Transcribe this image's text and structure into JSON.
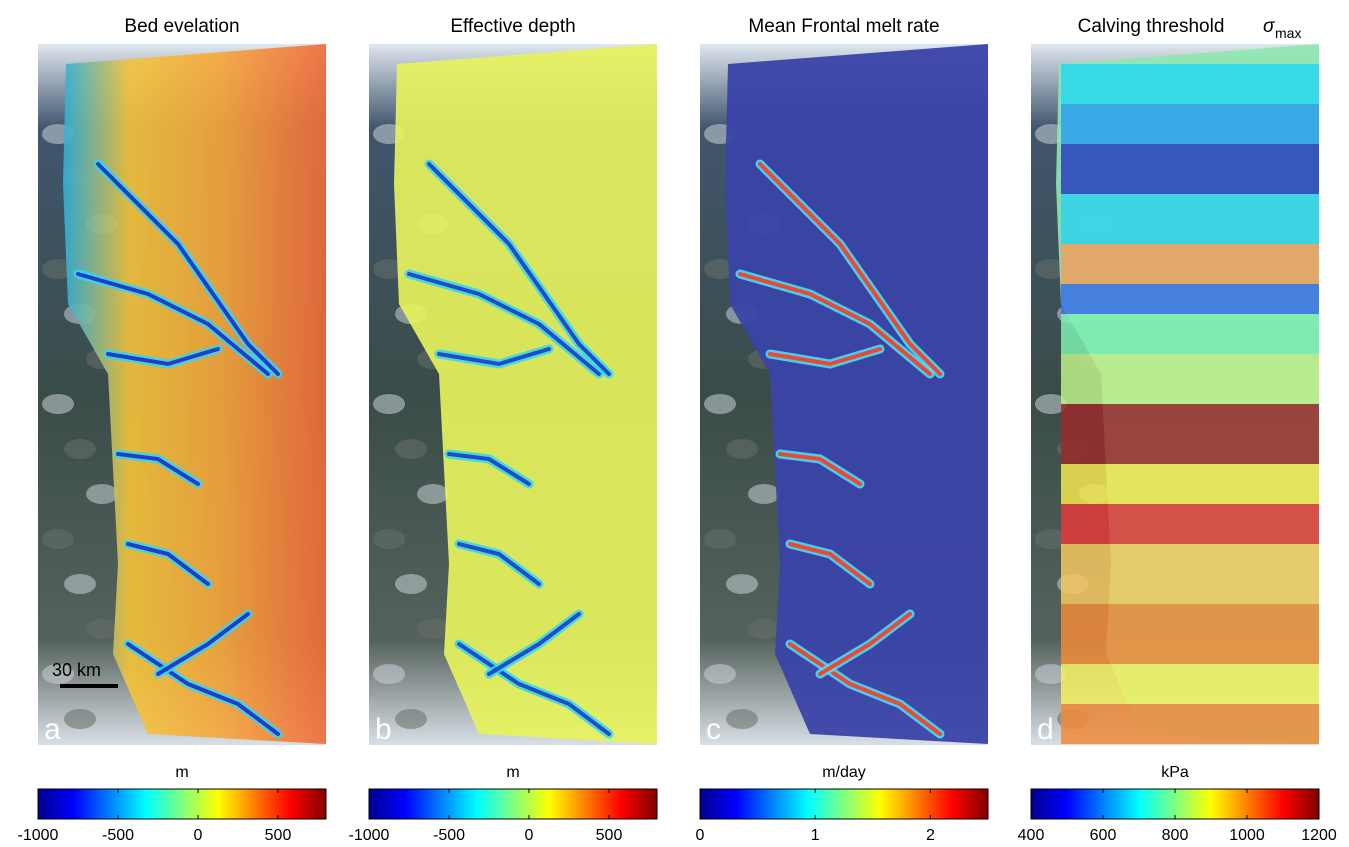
{
  "figure": {
    "panels": [
      {
        "id": "a",
        "title": "Bed evelation",
        "panel_letter": "a",
        "scale_bar": "30 km",
        "colorbar": {
          "unit": "m",
          "colormap": "jet",
          "range": [
            -1000,
            800
          ],
          "tick_labels": [
            "-1000",
            "-500",
            "0",
            "500"
          ],
          "tick_values": [
            -1000,
            -500,
            0,
            500
          ]
        }
      },
      {
        "id": "b",
        "title": "Effective depth",
        "panel_letter": "b",
        "colorbar": {
          "unit": "m",
          "colormap": "jet",
          "range": [
            -1000,
            800
          ],
          "tick_labels": [
            "-1000",
            "-500",
            "0",
            "500"
          ],
          "tick_values": [
            -1000,
            -500,
            0,
            500
          ]
        }
      },
      {
        "id": "c",
        "title": "Mean Frontal melt rate",
        "panel_letter": "c",
        "colorbar": {
          "unit": "m/day",
          "colormap": "jet",
          "range": [
            0,
            2.5
          ],
          "tick_labels": [
            "0",
            "1",
            "2"
          ],
          "tick_values": [
            0,
            1,
            2
          ]
        }
      },
      {
        "id": "d",
        "title": "Calving threshold",
        "title_symbol": "σ",
        "title_symbol_sub": "max",
        "panel_letter": "d",
        "colorbar": {
          "unit": "kPa",
          "colormap": "jet",
          "range": [
            400,
            1200
          ],
          "tick_labels": [
            "400",
            "600",
            "800",
            "1000",
            "1200"
          ],
          "tick_values": [
            400,
            600,
            800,
            1000,
            1200
          ]
        }
      }
    ],
    "colors": {
      "jet": [
        "#00008f",
        "#0000ff",
        "#0080ff",
        "#00ffff",
        "#80ff80",
        "#ffff00",
        "#ff8000",
        "#ff0000",
        "#800000"
      ],
      "ocean": "#2f4d70",
      "land_dark": "#3a4a44",
      "snow": "#e8edf2"
    }
  }
}
